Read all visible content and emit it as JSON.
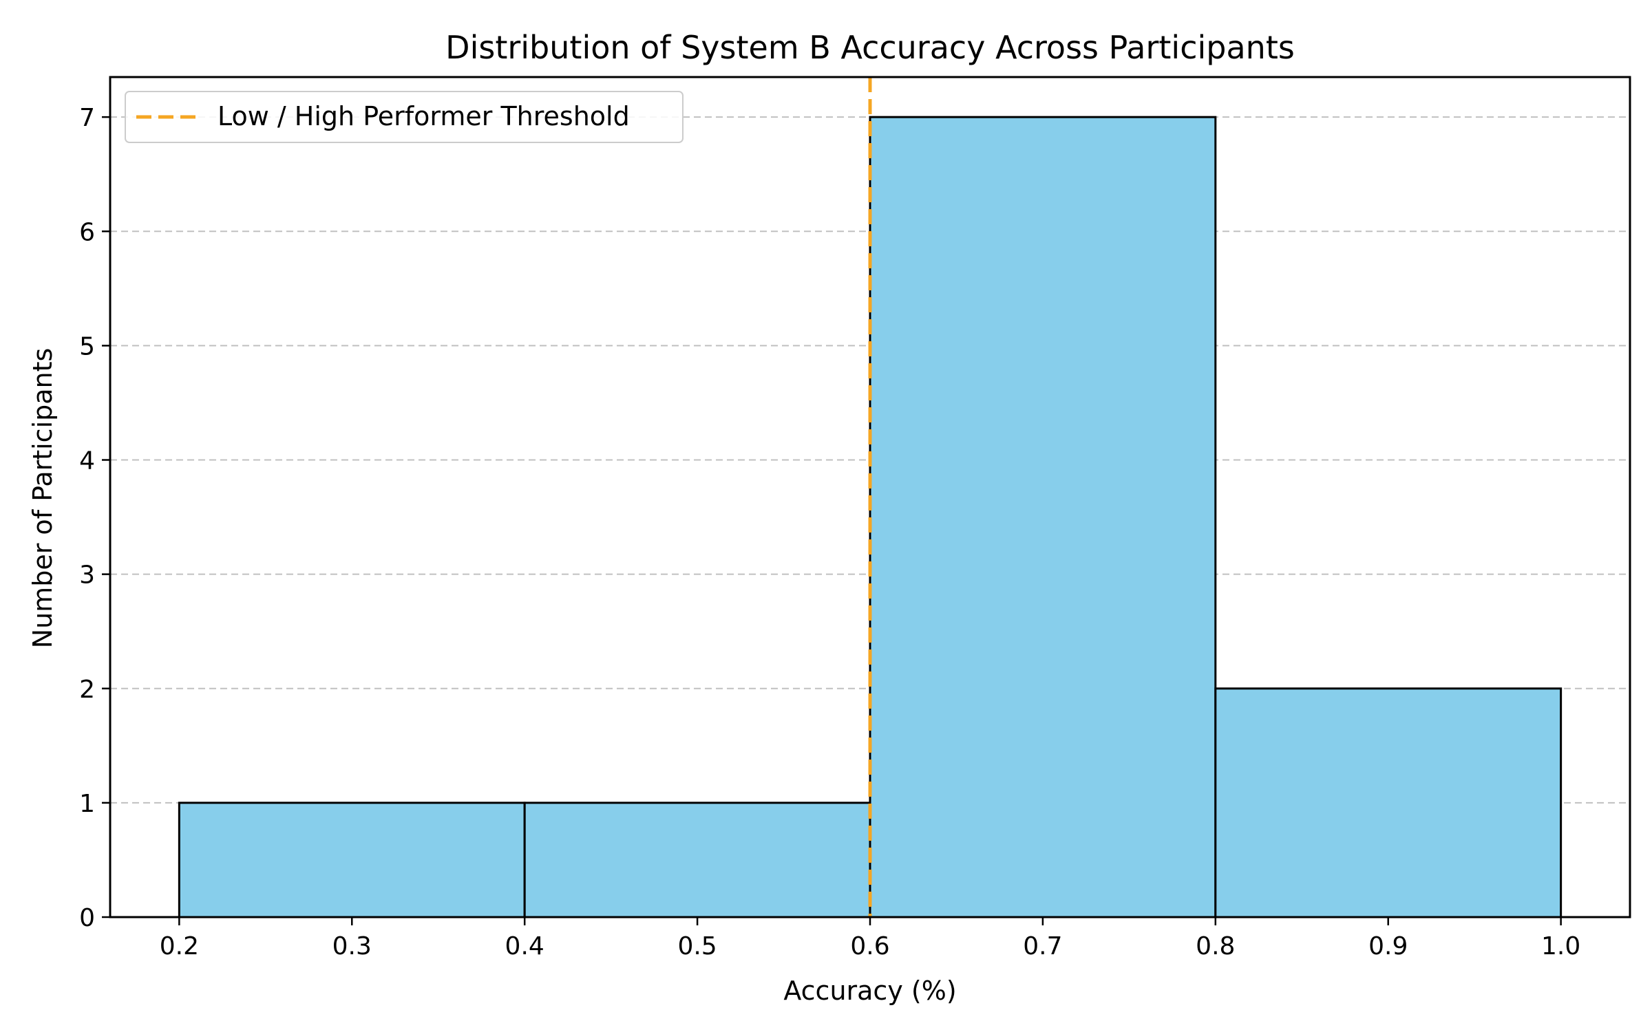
{
  "chart_data": {
    "type": "bar",
    "title": "Distribution of System B Accuracy Across Participants",
    "xlabel": "Accuracy (%)",
    "ylabel": "Number of Participants",
    "bins": [
      {
        "start": 0.2,
        "end": 0.4,
        "count": 1
      },
      {
        "start": 0.4,
        "end": 0.6,
        "count": 1
      },
      {
        "start": 0.6,
        "end": 0.8,
        "count": 7
      },
      {
        "start": 0.8,
        "end": 1.0,
        "count": 2
      }
    ],
    "xlim": [
      0.16,
      1.04
    ],
    "ylim": [
      0,
      7.35
    ],
    "xticks": [
      "0.2",
      "0.3",
      "0.4",
      "0.5",
      "0.6",
      "0.7",
      "0.8",
      "0.9",
      "1.0"
    ],
    "yticks": [
      "0",
      "1",
      "2",
      "3",
      "4",
      "5",
      "6",
      "7"
    ],
    "threshold": {
      "x": 0.6,
      "label": "Low / High Performer Threshold",
      "color": "#f5a623",
      "style": "dashed"
    },
    "bar_color": "#87ceeb",
    "bar_edge_color": "#000000",
    "grid": "y-dashed",
    "legend": "upper-left"
  }
}
